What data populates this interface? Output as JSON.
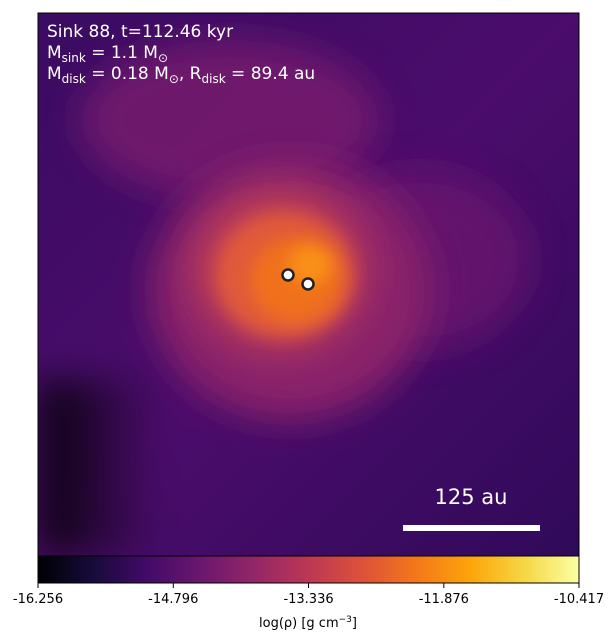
{
  "chart_data": {
    "type": "image",
    "annotations": [
      [
        "Sink 88, t=112.46 kyr"
      ],
      [
        "M",
        "sink",
        " = 1.1 M",
        "⊙"
      ],
      [
        "M",
        "disk",
        " = 0.18 M",
        "⊙",
        ", R",
        "disk",
        " = 89.4 au"
      ]
    ],
    "scale_bar": "125 au",
    "colorbar": {
      "lim": [
        -16.256,
        -10.417
      ],
      "ticks": [
        -16.256,
        -14.796,
        -13.336,
        -11.876,
        -10.417
      ],
      "label": [
        "log(ρ) [g cm",
        "−3",
        "]"
      ]
    }
  }
}
